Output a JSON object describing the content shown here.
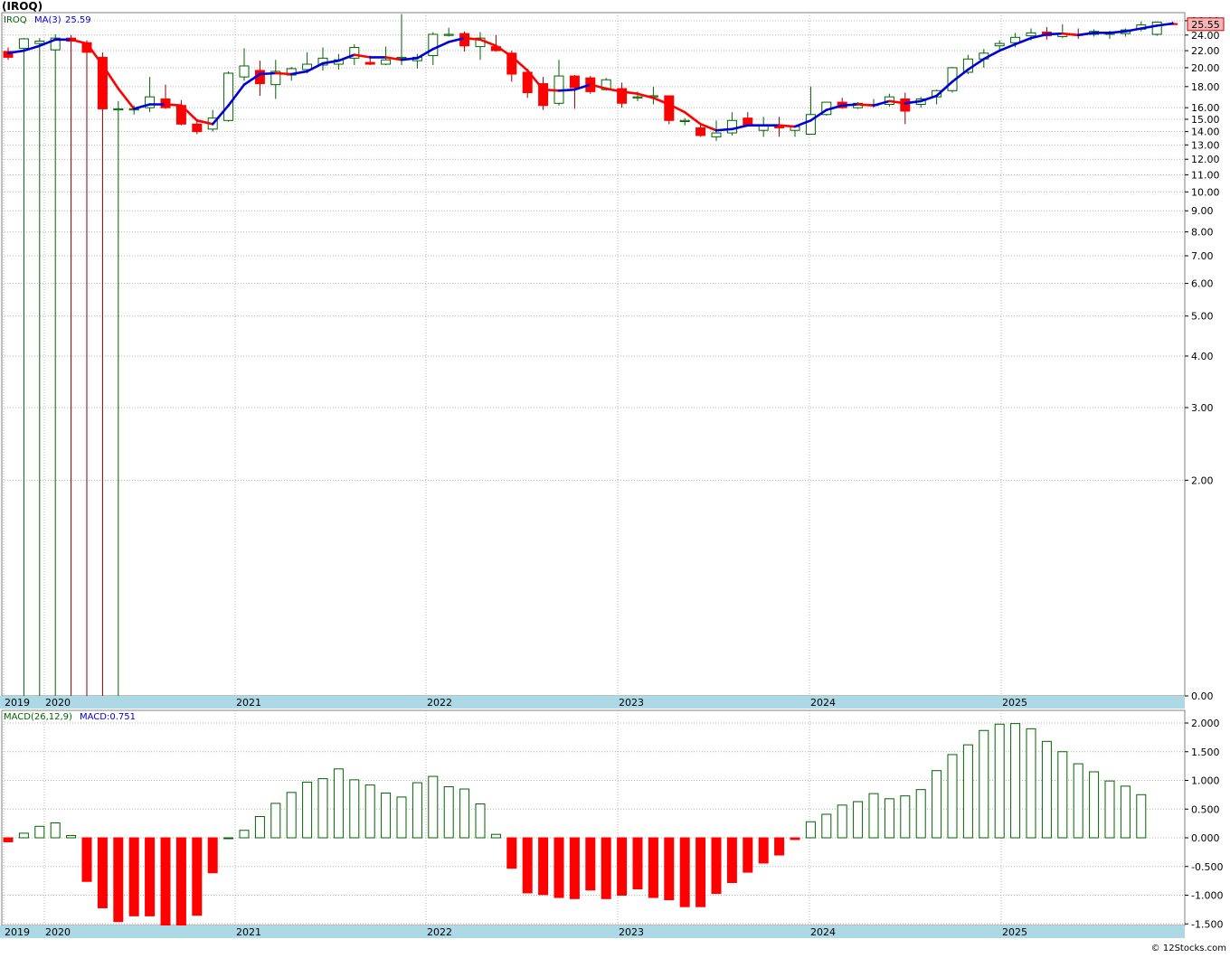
{
  "header": {
    "symbol_title": "(IROQ)",
    "legend_symbol": "IROQ",
    "legend_ma_label": "MA(3)",
    "legend_ma_value": "25.59",
    "last_price_label": "25.55",
    "macd_label": "MACD(26,12,9)",
    "macd_value_label": "MACD:0.751",
    "credit": "© 12Stocks.com"
  },
  "colors": {
    "up": "#006400",
    "down": "#ff0000",
    "ma_up": "#0000dd",
    "ma_down": "#ff0000",
    "year_band": "#add8e6",
    "grid": "#b4b4b4",
    "price_tag_bg": "#f4b6b6"
  },
  "chart_data": [
    {
      "type": "candlestick",
      "interval": "monthly",
      "y_scale": "log",
      "price_axis_labels": [
        "26.00",
        "24.00",
        "22.00",
        "20.00",
        "18.00",
        "16.00",
        "15.00",
        "14.00",
        "13.00",
        "12.00",
        "11.00",
        "10.00",
        "9.00",
        "8.00",
        "7.00",
        "6.00",
        "5.00",
        "4.00",
        "3.00",
        "2.00",
        "0.00"
      ],
      "year_labels": [
        "2019",
        "2020",
        "2021",
        "2022",
        "2023",
        "2024",
        "2025"
      ],
      "candles": [
        {
          "o": 21.9,
          "h": 22.4,
          "l": 20.9,
          "c": 21.2
        },
        {
          "o": 22.3,
          "h": 23.6,
          "l": 0.05,
          "c": 23.5
        },
        {
          "o": 22.9,
          "h": 23.6,
          "l": 0.05,
          "c": 23.2
        },
        {
          "o": 22.1,
          "h": 24.1,
          "l": 0.05,
          "c": 23.6
        },
        {
          "o": 23.6,
          "h": 24.0,
          "l": 0.05,
          "c": 23.2
        },
        {
          "o": 23.0,
          "h": 23.3,
          "l": 0.05,
          "c": 21.8
        },
        {
          "o": 21.2,
          "h": 21.8,
          "l": 0.05,
          "c": 15.9
        },
        {
          "o": 15.9,
          "h": 16.6,
          "l": 0.05,
          "c": 15.9
        },
        {
          "o": 15.8,
          "h": 16.2,
          "l": 15.4,
          "c": 15.9
        },
        {
          "o": 16.0,
          "h": 19.0,
          "l": 15.6,
          "c": 17.0
        },
        {
          "o": 16.8,
          "h": 18.2,
          "l": 15.9,
          "c": 16.0
        },
        {
          "o": 16.2,
          "h": 16.7,
          "l": 14.5,
          "c": 14.6
        },
        {
          "o": 14.6,
          "h": 14.8,
          "l": 13.8,
          "c": 14.0
        },
        {
          "o": 14.2,
          "h": 15.8,
          "l": 14.0,
          "c": 15.1
        },
        {
          "o": 14.9,
          "h": 19.6,
          "l": 14.8,
          "c": 19.4
        },
        {
          "o": 19.0,
          "h": 22.3,
          "l": 18.6,
          "c": 20.2
        },
        {
          "o": 19.7,
          "h": 20.8,
          "l": 17.1,
          "c": 18.3
        },
        {
          "o": 18.2,
          "h": 20.9,
          "l": 16.8,
          "c": 19.6
        },
        {
          "o": 19.2,
          "h": 20.1,
          "l": 18.6,
          "c": 19.9
        },
        {
          "o": 19.8,
          "h": 21.8,
          "l": 19.4,
          "c": 20.4
        },
        {
          "o": 20.3,
          "h": 22.4,
          "l": 19.7,
          "c": 21.1
        },
        {
          "o": 20.4,
          "h": 21.6,
          "l": 19.8,
          "c": 20.9
        },
        {
          "o": 21.1,
          "h": 22.8,
          "l": 20.3,
          "c": 22.4
        },
        {
          "o": 20.6,
          "h": 21.4,
          "l": 20.3,
          "c": 20.4
        },
        {
          "o": 20.4,
          "h": 22.5,
          "l": 20.3,
          "c": 20.9
        },
        {
          "o": 21.2,
          "h": 27.0,
          "l": 20.3,
          "c": 21.2
        },
        {
          "o": 20.8,
          "h": 21.6,
          "l": 19.9,
          "c": 21.2
        },
        {
          "o": 21.4,
          "h": 24.4,
          "l": 20.3,
          "c": 24.1
        },
        {
          "o": 24.1,
          "h": 25.0,
          "l": 23.8,
          "c": 24.1
        },
        {
          "o": 24.2,
          "h": 24.5,
          "l": 21.9,
          "c": 22.6
        },
        {
          "o": 22.5,
          "h": 24.4,
          "l": 20.9,
          "c": 23.6
        },
        {
          "o": 22.5,
          "h": 24.0,
          "l": 21.9,
          "c": 22.0
        },
        {
          "o": 21.7,
          "h": 22.0,
          "l": 18.5,
          "c": 19.3
        },
        {
          "o": 19.5,
          "h": 19.9,
          "l": 16.9,
          "c": 17.4
        },
        {
          "o": 18.3,
          "h": 19.0,
          "l": 15.8,
          "c": 16.2
        },
        {
          "o": 16.4,
          "h": 20.9,
          "l": 16.2,
          "c": 19.1
        },
        {
          "o": 19.1,
          "h": 19.2,
          "l": 15.9,
          "c": 17.9
        },
        {
          "o": 18.9,
          "h": 19.1,
          "l": 17.3,
          "c": 17.5
        },
        {
          "o": 17.7,
          "h": 18.9,
          "l": 17.6,
          "c": 18.7
        },
        {
          "o": 17.8,
          "h": 18.4,
          "l": 16.0,
          "c": 16.4
        },
        {
          "o": 16.9,
          "h": 17.5,
          "l": 16.6,
          "c": 17.0
        },
        {
          "o": 17.1,
          "h": 18.0,
          "l": 16.3,
          "c": 17.1
        },
        {
          "o": 17.1,
          "h": 17.1,
          "l": 14.6,
          "c": 14.9
        },
        {
          "o": 14.9,
          "h": 15.1,
          "l": 14.5,
          "c": 14.9
        },
        {
          "o": 14.3,
          "h": 14.5,
          "l": 13.6,
          "c": 13.7
        },
        {
          "o": 13.6,
          "h": 14.9,
          "l": 13.3,
          "c": 13.9
        },
        {
          "o": 13.9,
          "h": 15.6,
          "l": 13.7,
          "c": 14.9
        },
        {
          "o": 15.1,
          "h": 15.6,
          "l": 14.4,
          "c": 14.5
        },
        {
          "o": 14.1,
          "h": 15.2,
          "l": 13.6,
          "c": 14.5
        },
        {
          "o": 14.5,
          "h": 15.2,
          "l": 13.6,
          "c": 14.3
        },
        {
          "o": 14.1,
          "h": 14.5,
          "l": 13.6,
          "c": 14.4
        },
        {
          "o": 13.8,
          "h": 18.0,
          "l": 13.8,
          "c": 15.4
        },
        {
          "o": 15.4,
          "h": 16.5,
          "l": 15.3,
          "c": 16.5
        },
        {
          "o": 16.5,
          "h": 16.9,
          "l": 15.9,
          "c": 16.0
        },
        {
          "o": 16.0,
          "h": 16.5,
          "l": 15.9,
          "c": 16.4
        },
        {
          "o": 16.3,
          "h": 16.8,
          "l": 16.0,
          "c": 16.3
        },
        {
          "o": 16.3,
          "h": 17.3,
          "l": 16.1,
          "c": 17.0
        },
        {
          "o": 16.8,
          "h": 17.4,
          "l": 14.6,
          "c": 15.7
        },
        {
          "o": 16.3,
          "h": 17.0,
          "l": 16.0,
          "c": 16.8
        },
        {
          "o": 17.0,
          "h": 17.7,
          "l": 16.3,
          "c": 17.6
        },
        {
          "o": 17.6,
          "h": 20.1,
          "l": 17.4,
          "c": 20.0
        },
        {
          "o": 19.5,
          "h": 21.5,
          "l": 19.3,
          "c": 21.0
        },
        {
          "o": 21.0,
          "h": 22.2,
          "l": 20.0,
          "c": 21.7
        },
        {
          "o": 22.6,
          "h": 23.3,
          "l": 22.1,
          "c": 22.9
        },
        {
          "o": 23.0,
          "h": 24.3,
          "l": 22.4,
          "c": 23.7
        },
        {
          "o": 23.9,
          "h": 24.9,
          "l": 23.3,
          "c": 24.3
        },
        {
          "o": 24.4,
          "h": 25.1,
          "l": 23.4,
          "c": 23.9
        },
        {
          "o": 23.8,
          "h": 25.5,
          "l": 23.6,
          "c": 24.2
        },
        {
          "o": 24.1,
          "h": 24.9,
          "l": 23.5,
          "c": 24.0
        },
        {
          "o": 24.1,
          "h": 24.8,
          "l": 23.8,
          "c": 24.5
        },
        {
          "o": 24.1,
          "h": 24.6,
          "l": 23.5,
          "c": 24.3
        },
        {
          "o": 24.2,
          "h": 24.9,
          "l": 23.8,
          "c": 24.7
        },
        {
          "o": 24.8,
          "h": 25.9,
          "l": 24.5,
          "c": 25.4
        },
        {
          "o": 24.1,
          "h": 25.9,
          "l": 23.9,
          "c": 25.8
        },
        {
          "o": 25.6,
          "h": 25.9,
          "l": 25.5,
          "c": 25.5
        }
      ],
      "ma3": [
        21.7,
        22.0,
        22.6,
        23.4,
        23.4,
        22.9,
        20.3,
        17.8,
        15.9,
        16.3,
        16.3,
        16.2,
        14.9,
        14.6,
        16.2,
        18.2,
        19.3,
        19.4,
        19.3,
        19.6,
        20.5,
        20.8,
        21.5,
        21.2,
        21.2,
        20.9,
        21.1,
        22.2,
        23.1,
        23.6,
        23.4,
        22.6,
        21.3,
        19.7,
        17.7,
        17.6,
        17.7,
        18.2,
        17.8,
        17.5,
        17.3,
        16.9,
        16.3,
        15.6,
        14.6,
        14.1,
        14.2,
        14.5,
        14.5,
        14.5,
        14.4,
        14.9,
        15.8,
        16.2,
        16.3,
        16.2,
        16.6,
        16.4,
        16.6,
        17.1,
        18.5,
        19.8,
        21.0,
        22.0,
        22.8,
        23.6,
        24.1,
        24.2,
        24.0,
        24.3,
        24.3,
        24.5,
        24.9,
        25.3,
        25.59
      ]
    },
    {
      "type": "bar",
      "indicator": "MACD(26,12,9)",
      "ylim": [
        -1.55,
        2.05
      ],
      "axis_labels": [
        "2.000",
        "1.500",
        "1.000",
        "0.500",
        "0.000",
        "-0.500",
        "-1.000",
        "-1.500"
      ],
      "year_labels": [
        "2019",
        "2020",
        "2021",
        "2022",
        "2023",
        "2024",
        "2025"
      ],
      "values": [
        -0.07,
        0.08,
        0.2,
        0.26,
        0.04,
        -0.76,
        -1.22,
        -1.46,
        -1.36,
        -1.36,
        -1.53,
        -1.61,
        -1.35,
        -0.61,
        0.0,
        0.13,
        0.37,
        0.6,
        0.79,
        0.97,
        1.03,
        1.2,
        1.01,
        0.92,
        0.78,
        0.71,
        0.96,
        1.07,
        0.89,
        0.85,
        0.59,
        0.06,
        -0.53,
        -0.96,
        -0.99,
        -1.04,
        -1.06,
        -0.91,
        -1.06,
        -1.0,
        -0.89,
        -1.04,
        -1.08,
        -1.2,
        -1.2,
        -0.97,
        -0.78,
        -0.6,
        -0.44,
        -0.3,
        -0.03,
        0.28,
        0.41,
        0.57,
        0.63,
        0.77,
        0.68,
        0.73,
        0.84,
        1.17,
        1.45,
        1.62,
        1.87,
        1.98,
        1.99,
        1.9,
        1.68,
        1.5,
        1.29,
        1.15,
        0.99,
        0.9,
        0.751
      ]
    }
  ]
}
